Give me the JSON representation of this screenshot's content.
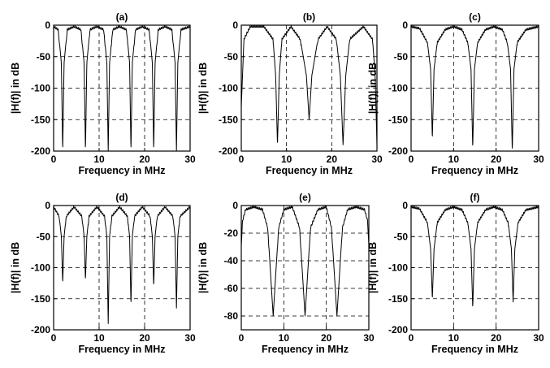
{
  "figure": {
    "background": "#ffffff",
    "line_color": "#000000"
  },
  "chart_data": [
    {
      "type": "line",
      "title": "(a)",
      "xlabel": "Frequency in MHz",
      "ylabel": "|H(f)| in dB",
      "xlim": [
        0,
        30
      ],
      "ylim": [
        -200,
        0
      ],
      "xticks": [
        0,
        10,
        20,
        30
      ],
      "xtick_labels": [
        "0",
        "10",
        "20",
        "30"
      ],
      "yticks": [
        0,
        -50,
        -100,
        -150,
        -200
      ],
      "ytick_labels": [
        "0",
        "-50",
        "-100",
        "-150",
        "-200"
      ],
      "grid": true,
      "notch_centers_mhz": [
        2.0,
        7.0,
        12.0,
        17.0,
        22.0,
        27.0
      ],
      "notch_depths_db": [
        -200,
        -200,
        -200,
        -200,
        -200,
        -200
      ],
      "series": [
        {
          "x": [
            0,
            1,
            1.7,
            2.0,
            2.3,
            3,
            4.5,
            6,
            6.7,
            7.0,
            7.3,
            8,
            9.5,
            11,
            11.7,
            12.0,
            12.3,
            13,
            14.5,
            16,
            16.7,
            17.0,
            17.3,
            18,
            19.5,
            21,
            21.7,
            22.0,
            22.3,
            23,
            24.5,
            26,
            26.7,
            27.0,
            27.3,
            28,
            30
          ],
          "y": [
            0,
            -5,
            -60,
            -200,
            -60,
            -5,
            0,
            -5,
            -60,
            -200,
            -60,
            -5,
            0,
            -5,
            -60,
            -200,
            -60,
            -5,
            0,
            -5,
            -60,
            -200,
            -60,
            -5,
            0,
            -5,
            -60,
            -200,
            -60,
            -5,
            0,
            -5,
            -60,
            -200,
            -60,
            -5,
            0
          ]
        }
      ]
    },
    {
      "type": "line",
      "title": "(b)",
      "xlabel": "Frequency in MHz",
      "ylabel": "|H(f)| in dB",
      "xlim": [
        0,
        30
      ],
      "ylim": [
        -200,
        0
      ],
      "xticks": [
        0,
        10,
        20,
        30
      ],
      "xtick_labels": [
        "0",
        "10",
        "20",
        "30"
      ],
      "yticks": [
        0,
        -50,
        -100,
        -150,
        -200
      ],
      "ytick_labels": [
        "0",
        "-50",
        "-100",
        "-150",
        "-200"
      ],
      "grid": true,
      "notch_centers_mhz": [
        0.2,
        8.0,
        15.0,
        22.5,
        29.8
      ],
      "notch_depths_db": [
        -130,
        -190,
        -150,
        -190,
        -190
      ],
      "series": [
        {
          "x": [
            0,
            0.6,
            2,
            5,
            7,
            7.6,
            8.0,
            8.4,
            9,
            11,
            13,
            14.4,
            15.0,
            15.6,
            17,
            19,
            21,
            21.9,
            22.5,
            23.1,
            24,
            27,
            29,
            29.6,
            30
          ],
          "y": [
            -130,
            -20,
            0,
            0,
            -20,
            -80,
            -190,
            -80,
            -20,
            0,
            -20,
            -80,
            -150,
            -80,
            -20,
            0,
            -20,
            -80,
            -190,
            -80,
            -20,
            0,
            -20,
            -80,
            -190
          ]
        }
      ]
    },
    {
      "type": "line",
      "title": "(c)",
      "xlabel": "Frequency in MHz",
      "ylabel": "|H(f)| in dB",
      "xlim": [
        0,
        30
      ],
      "ylim": [
        -200,
        0
      ],
      "xticks": [
        0,
        10,
        20,
        30
      ],
      "xtick_labels": [
        "0",
        "10",
        "20",
        "30"
      ],
      "yticks": [
        0,
        -50,
        -100,
        -150,
        -200
      ],
      "ytick_labels": [
        "0",
        "-50",
        "-100",
        "-150",
        "-200"
      ],
      "grid": true,
      "notch_centers_mhz": [
        5.0,
        14.5,
        23.8
      ],
      "notch_depths_db": [
        -180,
        -195,
        -200
      ],
      "series": [
        {
          "x": [
            0,
            2,
            3.8,
            4.6,
            5.0,
            5.4,
            6.2,
            8,
            10,
            12,
            13.3,
            14.1,
            14.5,
            14.9,
            15.7,
            17.5,
            19.5,
            21.5,
            22.6,
            23.4,
            23.8,
            24.2,
            25,
            27,
            30
          ],
          "y": [
            0,
            -3,
            -25,
            -70,
            -180,
            -70,
            -25,
            -5,
            0,
            -5,
            -25,
            -70,
            -195,
            -70,
            -25,
            -5,
            0,
            -5,
            -25,
            -70,
            -200,
            -70,
            -25,
            -5,
            0
          ]
        }
      ]
    },
    {
      "type": "line",
      "title": "(d)",
      "xlabel": "Frequency in MHz",
      "ylabel": "|H(f)| in dB",
      "xlim": [
        0,
        30
      ],
      "ylim": [
        -200,
        0
      ],
      "xticks": [
        0,
        10,
        20,
        30
      ],
      "xtick_labels": [
        "0",
        "10",
        "20",
        "30"
      ],
      "yticks": [
        0,
        -50,
        -100,
        -150,
        -200
      ],
      "ytick_labels": [
        "0",
        "-50",
        "-100",
        "-150",
        "-200"
      ],
      "grid": true,
      "notch_centers_mhz": [
        2.0,
        7.0,
        12.0,
        17.0,
        22.0,
        27.0
      ],
      "notch_depths_db": [
        -125,
        -120,
        -190,
        -160,
        -130,
        -165
      ],
      "series": [
        {
          "x": [
            0,
            1.2,
            1.7,
            2.0,
            2.3,
            2.8,
            4.5,
            6.2,
            6.7,
            7.0,
            7.3,
            7.8,
            9.5,
            11.2,
            11.7,
            12.0,
            12.3,
            12.8,
            14.5,
            16.2,
            16.7,
            17.0,
            17.3,
            17.8,
            19.5,
            21.2,
            21.7,
            22.0,
            22.3,
            22.8,
            24.5,
            26.2,
            26.7,
            27.0,
            27.3,
            27.8,
            30
          ],
          "y": [
            0,
            -15,
            -50,
            -125,
            -50,
            -15,
            0,
            -15,
            -50,
            -120,
            -50,
            -15,
            0,
            -15,
            -50,
            -190,
            -50,
            -15,
            0,
            -15,
            -50,
            -160,
            -50,
            -15,
            0,
            -15,
            -50,
            -130,
            -50,
            -15,
            0,
            -15,
            -50,
            -165,
            -50,
            -15,
            0
          ]
        }
      ]
    },
    {
      "type": "line",
      "title": "(e)",
      "xlabel": "Frequency in MHz",
      "ylabel": "|H(f)| in dB",
      "xlim": [
        0,
        30
      ],
      "ylim": [
        -90,
        0
      ],
      "xticks": [
        0,
        10,
        20,
        30
      ],
      "xtick_labels": [
        "0",
        "10",
        "20",
        "30"
      ],
      "yticks": [
        0,
        -20,
        -40,
        -60,
        -80
      ],
      "ytick_labels": [
        "0",
        "-20",
        "-40",
        "-60",
        "-80"
      ],
      "grid": true,
      "notch_centers_mhz": [
        7.5,
        15.0,
        22.5
      ],
      "notch_depths_db": [
        -80,
        -80,
        -80
      ],
      "series": [
        {
          "x": [
            0,
            0.3,
            1,
            3,
            5,
            6.2,
            6.9,
            7.5,
            8.1,
            8.8,
            10,
            12,
            13.7,
            14.4,
            15.0,
            15.6,
            16.3,
            18,
            20,
            21.2,
            21.9,
            22.5,
            23.1,
            23.8,
            25,
            27,
            29,
            29.7,
            30
          ],
          "y": [
            -28,
            -10,
            -2,
            0,
            -2,
            -15,
            -50,
            -80,
            -50,
            -15,
            -2,
            0,
            -15,
            -50,
            -80,
            -50,
            -15,
            -2,
            0,
            -15,
            -50,
            -80,
            -50,
            -15,
            -2,
            0,
            -2,
            -10,
            -28
          ]
        }
      ]
    },
    {
      "type": "line",
      "title": "(f)",
      "xlabel": "Frequency in MHz",
      "ylabel": "|H(f)| in dB",
      "xlim": [
        0,
        30
      ],
      "ylim": [
        -200,
        0
      ],
      "xticks": [
        0,
        10,
        20,
        30
      ],
      "xtick_labels": [
        "0",
        "10",
        "20",
        "30"
      ],
      "yticks": [
        0,
        -50,
        -100,
        -150,
        -200
      ],
      "ytick_labels": [
        "0",
        "-50",
        "-100",
        "-150",
        "-200"
      ],
      "grid": true,
      "notch_centers_mhz": [
        5.0,
        14.5,
        24.0
      ],
      "notch_depths_db": [
        -150,
        -165,
        -155
      ],
      "series": [
        {
          "x": [
            0,
            2,
            3.8,
            4.6,
            5.0,
            5.4,
            6.2,
            8,
            10,
            12,
            13.3,
            14.1,
            14.5,
            14.9,
            15.7,
            17.5,
            19.5,
            21.5,
            22.8,
            23.6,
            24.0,
            24.4,
            25.2,
            27,
            30
          ],
          "y": [
            0,
            -3,
            -25,
            -70,
            -150,
            -70,
            -25,
            -5,
            0,
            -5,
            -25,
            -70,
            -165,
            -70,
            -25,
            -5,
            0,
            -5,
            -25,
            -70,
            -155,
            -70,
            -25,
            -5,
            0
          ]
        }
      ]
    }
  ]
}
